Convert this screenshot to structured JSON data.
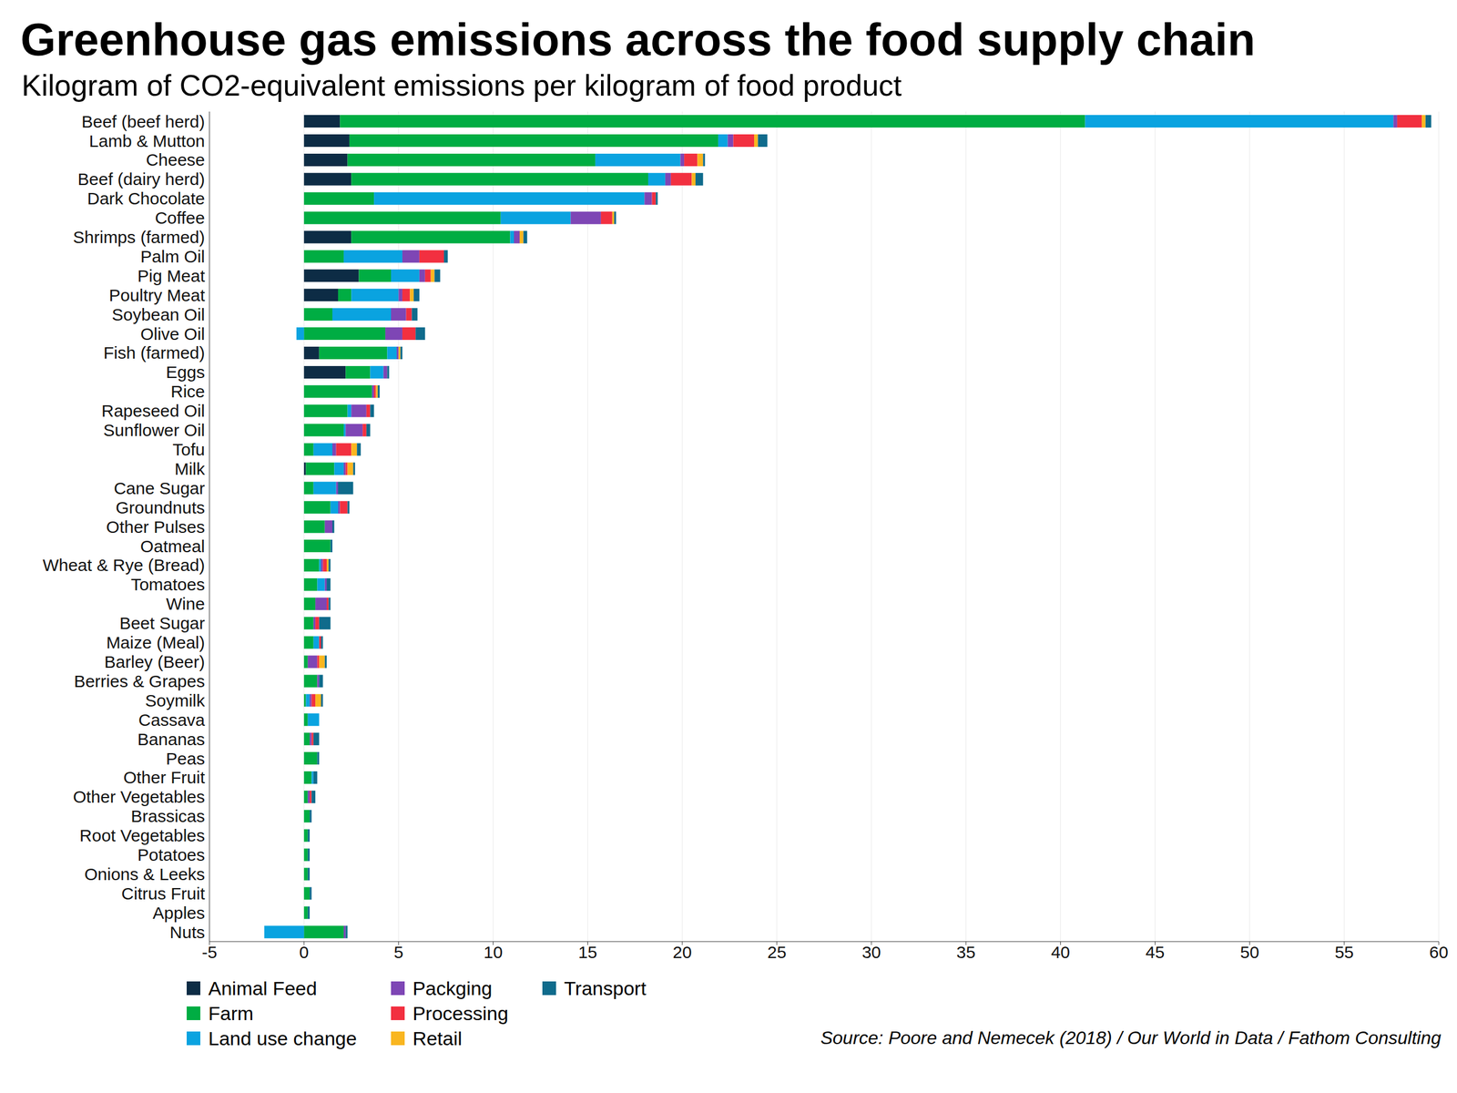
{
  "chart_data": {
    "type": "bar",
    "title": "Greenhouse gas emissions across the food supply chain",
    "subtitle": "Kilogram of CO2-equivalent emissions per kilogram of food product",
    "source": "Source: Poore and Nemecek (2018) / Our World in Data / Fathom Consulting",
    "orientation": "horizontal",
    "stacked": true,
    "grid": true,
    "legend": "bottom",
    "xlim": [
      -5,
      60
    ],
    "xticks": [
      -5,
      0,
      5,
      10,
      15,
      20,
      25,
      30,
      35,
      40,
      45,
      50,
      55,
      60
    ],
    "categories": [
      "Beef (beef herd)",
      "Lamb & Mutton",
      "Cheese",
      "Beef (dairy herd)",
      "Dark Chocolate",
      "Coffee",
      "Shrimps (farmed)",
      "Palm Oil",
      "Pig Meat",
      "Poultry Meat",
      "Soybean Oil",
      "Olive Oil",
      "Fish (farmed)",
      "Eggs",
      "Rice",
      "Rapeseed Oil",
      "Sunflower Oil",
      "Tofu",
      "Milk",
      "Cane Sugar",
      "Groundnuts",
      "Other Pulses",
      "Oatmeal",
      "Wheat & Rye (Bread)",
      "Tomatoes",
      "Wine",
      "Beet Sugar",
      "Maize (Meal)",
      "Barley (Beer)",
      "Berries & Grapes",
      "Soymilk",
      "Cassava",
      "Bananas",
      "Peas",
      "Other Fruit",
      "Other Vegetables",
      "Brassicas",
      "Root Vegetables",
      "Potatoes",
      "Onions & Leeks",
      "Citrus Fruit",
      "Apples",
      "Nuts"
    ],
    "series": [
      {
        "name": "Animal Feed",
        "color": "#0d2c45",
        "values": [
          1.9,
          2.4,
          2.3,
          2.5,
          0,
          0,
          2.5,
          0,
          2.9,
          1.8,
          0,
          0,
          0.8,
          2.2,
          0,
          0,
          0,
          0,
          0.1,
          0,
          0,
          0,
          0,
          0,
          0,
          0,
          0,
          0,
          0,
          0,
          0,
          0,
          0,
          0,
          0,
          0,
          0,
          0,
          0,
          0,
          0,
          0,
          0
        ]
      },
      {
        "name": "Farm",
        "color": "#00ad43",
        "values": [
          39.4,
          19.5,
          13.1,
          15.7,
          3.7,
          10.4,
          8.4,
          2.1,
          1.7,
          0.7,
          1.5,
          4.3,
          3.6,
          1.3,
          3.6,
          2.3,
          2.1,
          0.5,
          1.5,
          0.5,
          1.4,
          1.1,
          1.4,
          0.8,
          0.7,
          0.6,
          0.5,
          0.5,
          0.2,
          0.7,
          0.1,
          0.2,
          0.3,
          0.7,
          0.4,
          0.2,
          0.3,
          0.2,
          0.2,
          0.2,
          0.3,
          0.2,
          2.1
        ]
      },
      {
        "name": "Land use change",
        "color": "#0aa3e0",
        "values": [
          16.3,
          0.5,
          4.5,
          0.9,
          14.3,
          3.7,
          0.2,
          3.1,
          1.5,
          2.5,
          3.1,
          -0.4,
          0.5,
          0.7,
          0,
          0.2,
          0.1,
          1.0,
          0.5,
          1.2,
          0.4,
          0,
          0,
          0.1,
          0.4,
          0,
          0,
          0.3,
          0,
          0,
          0.2,
          0.6,
          0,
          0,
          0.1,
          0,
          0,
          0,
          0,
          0,
          0,
          0,
          -2.1
        ]
      },
      {
        "name": "Packging",
        "color": "#7e46b5",
        "values": [
          0.2,
          0.3,
          0.2,
          0.3,
          0.4,
          1.6,
          0.3,
          0.9,
          0.3,
          0.2,
          0.8,
          0.9,
          0.1,
          0.2,
          0.1,
          0.8,
          0.9,
          0.2,
          0.1,
          0.1,
          0.1,
          0.4,
          0,
          0.1,
          0.1,
          0.6,
          0.1,
          0,
          0.5,
          0.1,
          0.1,
          0,
          0.1,
          0,
          0,
          0.1,
          0,
          0,
          0,
          0,
          0,
          0,
          0.1
        ]
      },
      {
        "name": "Processing",
        "color": "#f23040",
        "values": [
          1.3,
          1.1,
          0.7,
          1.1,
          0.2,
          0.6,
          0,
          1.3,
          0.3,
          0.4,
          0.3,
          0.7,
          0,
          0,
          0.1,
          0.2,
          0.2,
          0.8,
          0.1,
          0,
          0.4,
          0,
          0,
          0.2,
          0,
          0.1,
          0.2,
          0.1,
          0.1,
          0,
          0.2,
          0,
          0.1,
          0,
          0,
          0.1,
          0,
          0,
          0,
          0,
          0,
          0,
          0
        ]
      },
      {
        "name": "Retail",
        "color": "#f9b620",
        "values": [
          0.2,
          0.2,
          0.3,
          0.2,
          0,
          0.1,
          0.2,
          0,
          0.2,
          0.2,
          0,
          0,
          0.1,
          0,
          0.1,
          0,
          0,
          0.3,
          0.3,
          0,
          0,
          0,
          0,
          0.1,
          0,
          0,
          0,
          0,
          0.3,
          0,
          0.3,
          0,
          0,
          0,
          0,
          0,
          0,
          0,
          0,
          0,
          0,
          0,
          0
        ]
      },
      {
        "name": "Transport",
        "color": "#0f6b8c",
        "values": [
          0.3,
          0.5,
          0.1,
          0.4,
          0.1,
          0.1,
          0.2,
          0.2,
          0.3,
          0.3,
          0.3,
          0.5,
          0.1,
          0.1,
          0.1,
          0.2,
          0.2,
          0.2,
          0.1,
          0.8,
          0.1,
          0.1,
          0.1,
          0.1,
          0.2,
          0.1,
          0.6,
          0.1,
          0.1,
          0.2,
          0.1,
          0,
          0.3,
          0.1,
          0.2,
          0.2,
          0.1,
          0.1,
          0.1,
          0.1,
          0.1,
          0.1,
          0.1
        ]
      }
    ]
  }
}
